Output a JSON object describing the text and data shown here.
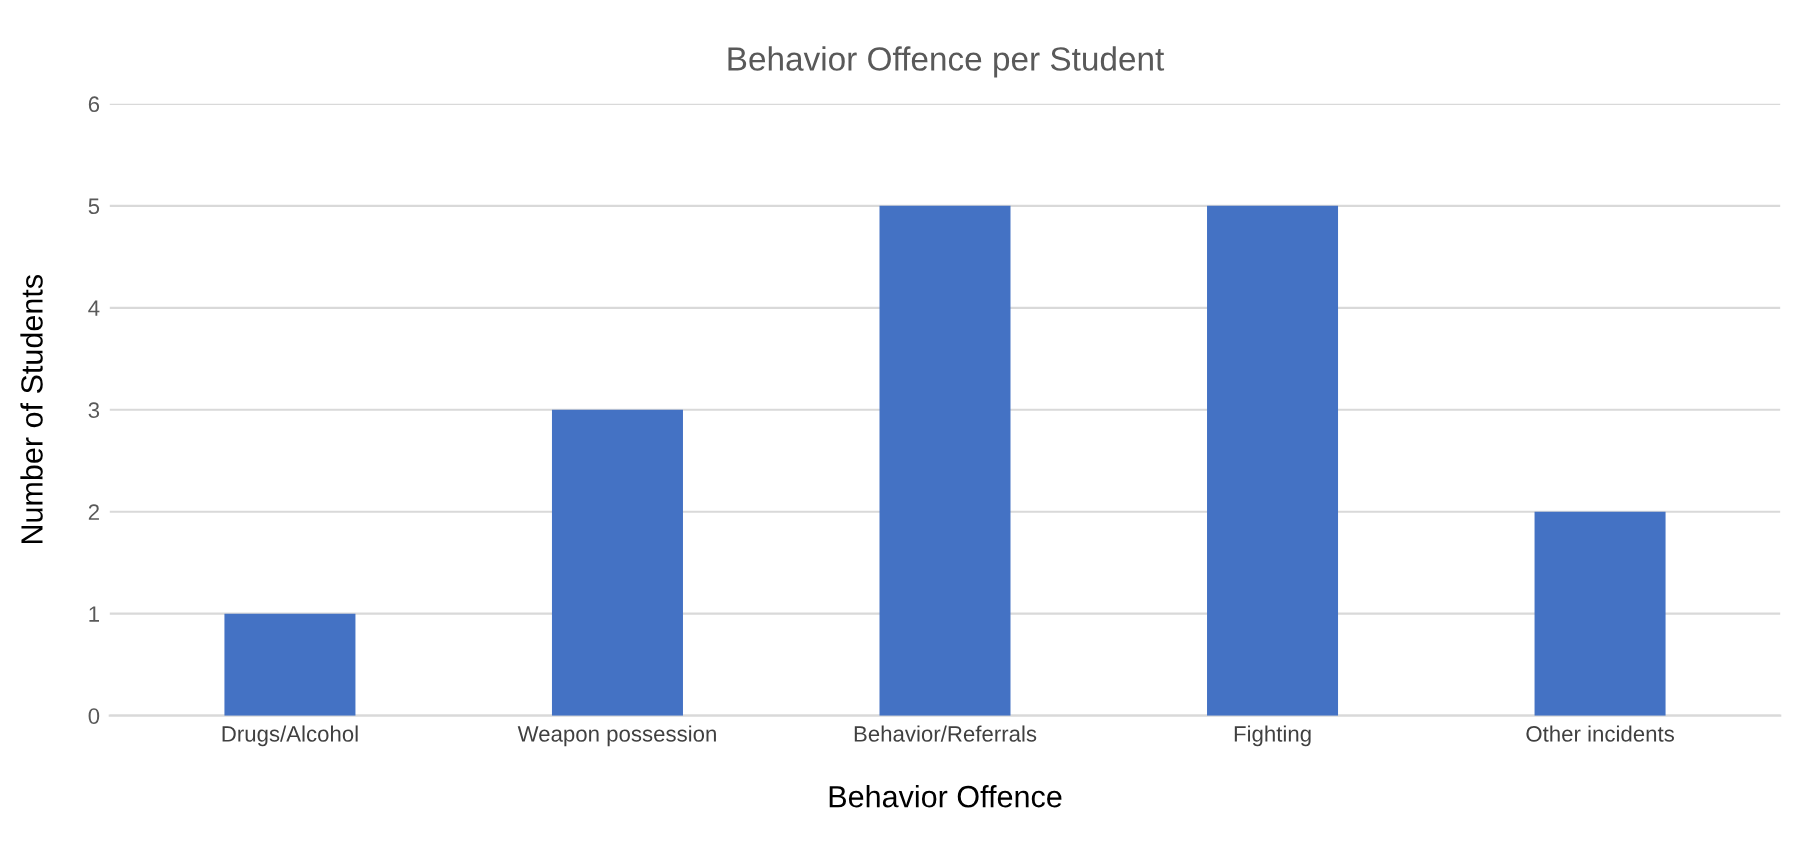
{
  "chart_data": {
    "type": "bar",
    "title": "Behavior Offence per Student",
    "xlabel": "Behavior Offence",
    "ylabel": "Number of Students",
    "categories": [
      "Drugs/Alcohol",
      "Weapon possession",
      "Behavior/Referrals",
      "Fighting",
      "Other incidents"
    ],
    "values": [
      1,
      3,
      5,
      5,
      2
    ],
    "color": "#4472c4",
    "ylim": [
      0,
      6
    ],
    "yticks": [
      0,
      1,
      2,
      3,
      4,
      5,
      6
    ],
    "grid": "y",
    "legend": false
  }
}
